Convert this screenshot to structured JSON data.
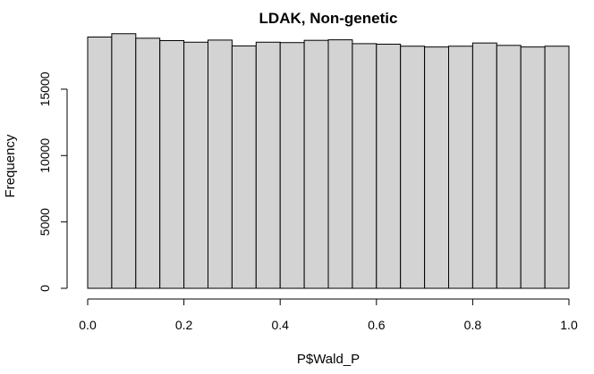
{
  "chart_data": {
    "type": "bar",
    "title": "LDAK, Non-genetic",
    "xlabel": "P$Wald_P",
    "ylabel": "Frequency",
    "xlim": [
      0,
      1
    ],
    "ylim": [
      0,
      19500
    ],
    "bin_width": 0.05,
    "bins_start": [
      0.0,
      0.05,
      0.1,
      0.15,
      0.2,
      0.25,
      0.3,
      0.35,
      0.4,
      0.45,
      0.5,
      0.55,
      0.6,
      0.65,
      0.7,
      0.75,
      0.8,
      0.85,
      0.9,
      0.95
    ],
    "values": [
      18930,
      19180,
      18840,
      18660,
      18540,
      18700,
      18260,
      18540,
      18510,
      18680,
      18720,
      18430,
      18390,
      18240,
      18180,
      18240,
      18480,
      18300,
      18180,
      18240
    ],
    "x_ticks": [
      0.0,
      0.2,
      0.4,
      0.6,
      0.8,
      1.0
    ],
    "x_tick_labels": [
      "0.0",
      "0.2",
      "0.4",
      "0.6",
      "0.8",
      "1.0"
    ],
    "y_ticks": [
      0,
      5000,
      10000,
      15000
    ],
    "y_tick_labels": [
      "0",
      "5000",
      "10000",
      "15000"
    ],
    "bar_fill": "#d3d3d3",
    "bar_stroke": "#000000",
    "grid": false,
    "legend": "none"
  }
}
